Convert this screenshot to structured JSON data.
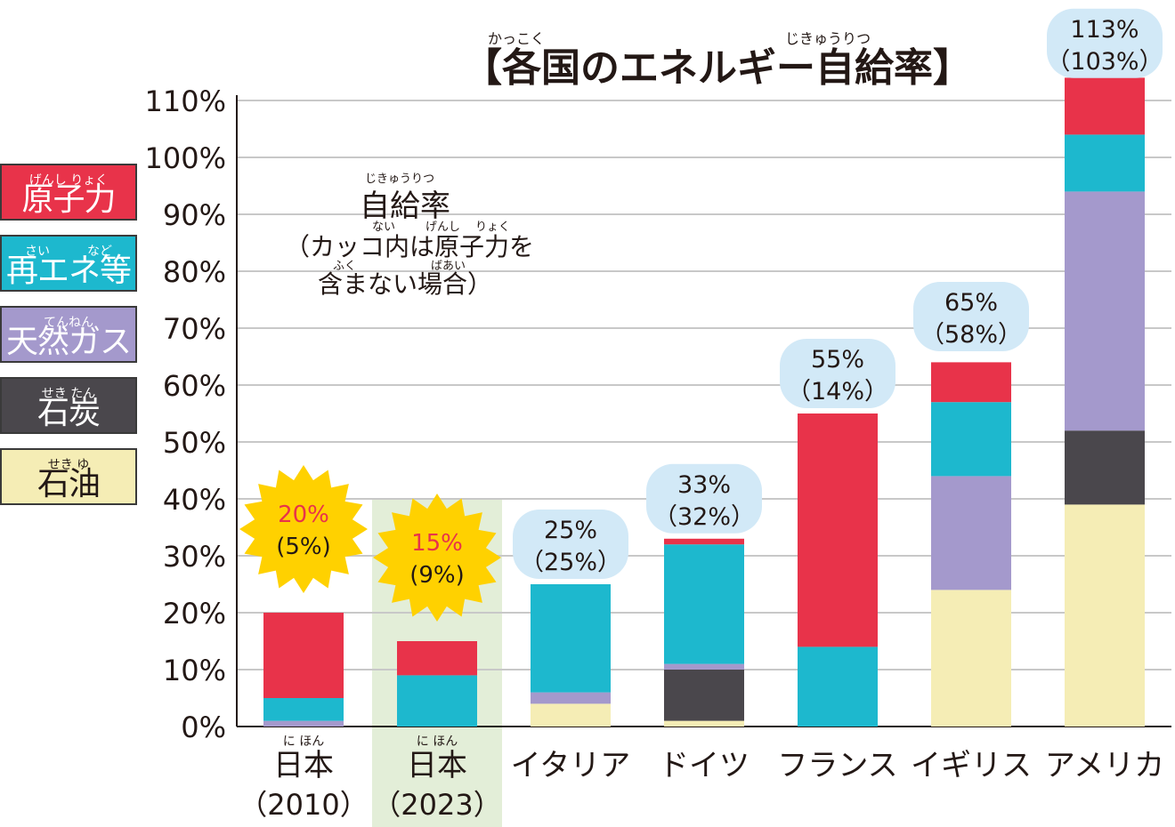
{
  "title": "【各国のエネルギー自給率】",
  "title_ruby": {
    "kakkoku": "かっこく",
    "jikyuritsu": "じきゅうりつ"
  },
  "note": {
    "ruby_jikyu": "じきゅうりつ",
    "line1": "自給率",
    "ruby_nai": "ない",
    "ruby_genshi": "げんし",
    "ruby_ryoku": "りょく",
    "line2": "（カッコ内は原子力を",
    "ruby_fuku": "ふく",
    "ruby_baai": "ばあい",
    "line3": "含まない場合）"
  },
  "legend": [
    {
      "label": "原子力",
      "ruby": "げんし りょく",
      "color": "#E8334A",
      "text_color": "#ffffff"
    },
    {
      "label": "再エネ等",
      "ruby": "さい　　　など",
      "color": "#1DB8CE",
      "text_color": "#ffffff"
    },
    {
      "label": "天然ガス",
      "ruby": "てんねん",
      "color": "#A499CC",
      "text_color": "#ffffff"
    },
    {
      "label": "石炭",
      "ruby": "せき たん",
      "color": "#4A474C",
      "text_color": "#ffffff"
    },
    {
      "label": "石油",
      "ruby": "せき ゆ",
      "color": "#F5EDB5",
      "text_color": "#231815"
    }
  ],
  "highlight_color": "#E3EED8",
  "chart_data": {
    "type": "bar",
    "stacked": true,
    "title": "【各国のエネルギー自給率】",
    "ylim": [
      0,
      110
    ],
    "yticks": [
      "0%",
      "10%",
      "20%",
      "30%",
      "40%",
      "50%",
      "60%",
      "70%",
      "80%",
      "90%",
      "100%",
      "110%"
    ],
    "grid": true,
    "categories": [
      "日本（2010）",
      "日本（2023）",
      "イタリア",
      "ドイツ",
      "フランス",
      "イギリス",
      "アメリカ"
    ],
    "category_lines": [
      {
        "ruby": "に ほん",
        "line1": "日本",
        "line2": "（2010）"
      },
      {
        "ruby": "に ほん",
        "line1": "日本",
        "line2": "（2023）"
      },
      {
        "ruby": "",
        "line1": "イタリア",
        "line2": ""
      },
      {
        "ruby": "",
        "line1": "ドイツ",
        "line2": ""
      },
      {
        "ruby": "",
        "line1": "フランス",
        "line2": ""
      },
      {
        "ruby": "",
        "line1": "イギリス",
        "line2": ""
      },
      {
        "ruby": "",
        "line1": "アメリカ",
        "line2": ""
      }
    ],
    "highlighted_category": 1,
    "series": [
      {
        "name": "石油",
        "color": "#F5EDB5",
        "values": [
          0,
          0,
          4,
          1,
          0,
          24,
          39
        ]
      },
      {
        "name": "石炭",
        "color": "#4A474C",
        "values": [
          0,
          0,
          0,
          9,
          0,
          0,
          13
        ]
      },
      {
        "name": "天然ガス",
        "color": "#A499CC",
        "values": [
          1,
          0,
          2,
          1,
          0,
          20,
          42
        ]
      },
      {
        "name": "再エネ等",
        "color": "#1DB8CE",
        "values": [
          4,
          9,
          19,
          21,
          14,
          13,
          10
        ]
      },
      {
        "name": "原子力",
        "color": "#E8334A",
        "values": [
          15,
          6,
          0,
          1,
          41,
          7,
          10
        ]
      }
    ],
    "totals": [
      {
        "total": "20%",
        "excl": "(5%)",
        "style": "burst"
      },
      {
        "total": "15%",
        "excl": "(9%)",
        "style": "burst"
      },
      {
        "total": "25%",
        "excl": "（25%）",
        "style": "bubble"
      },
      {
        "total": "33%",
        "excl": "（32%）",
        "style": "bubble"
      },
      {
        "total": "55%",
        "excl": "（14%）",
        "style": "bubble"
      },
      {
        "total": "65%",
        "excl": "（58%）",
        "style": "bubble"
      },
      {
        "total": "113%",
        "excl": "（103%）",
        "style": "bubble"
      }
    ],
    "total_values": [
      20,
      15,
      25,
      33,
      55,
      65,
      113
    ],
    "burst_color": "#FFD100",
    "burst_text_color": "#E8334A",
    "bubble_color": "#D2E9F7"
  }
}
